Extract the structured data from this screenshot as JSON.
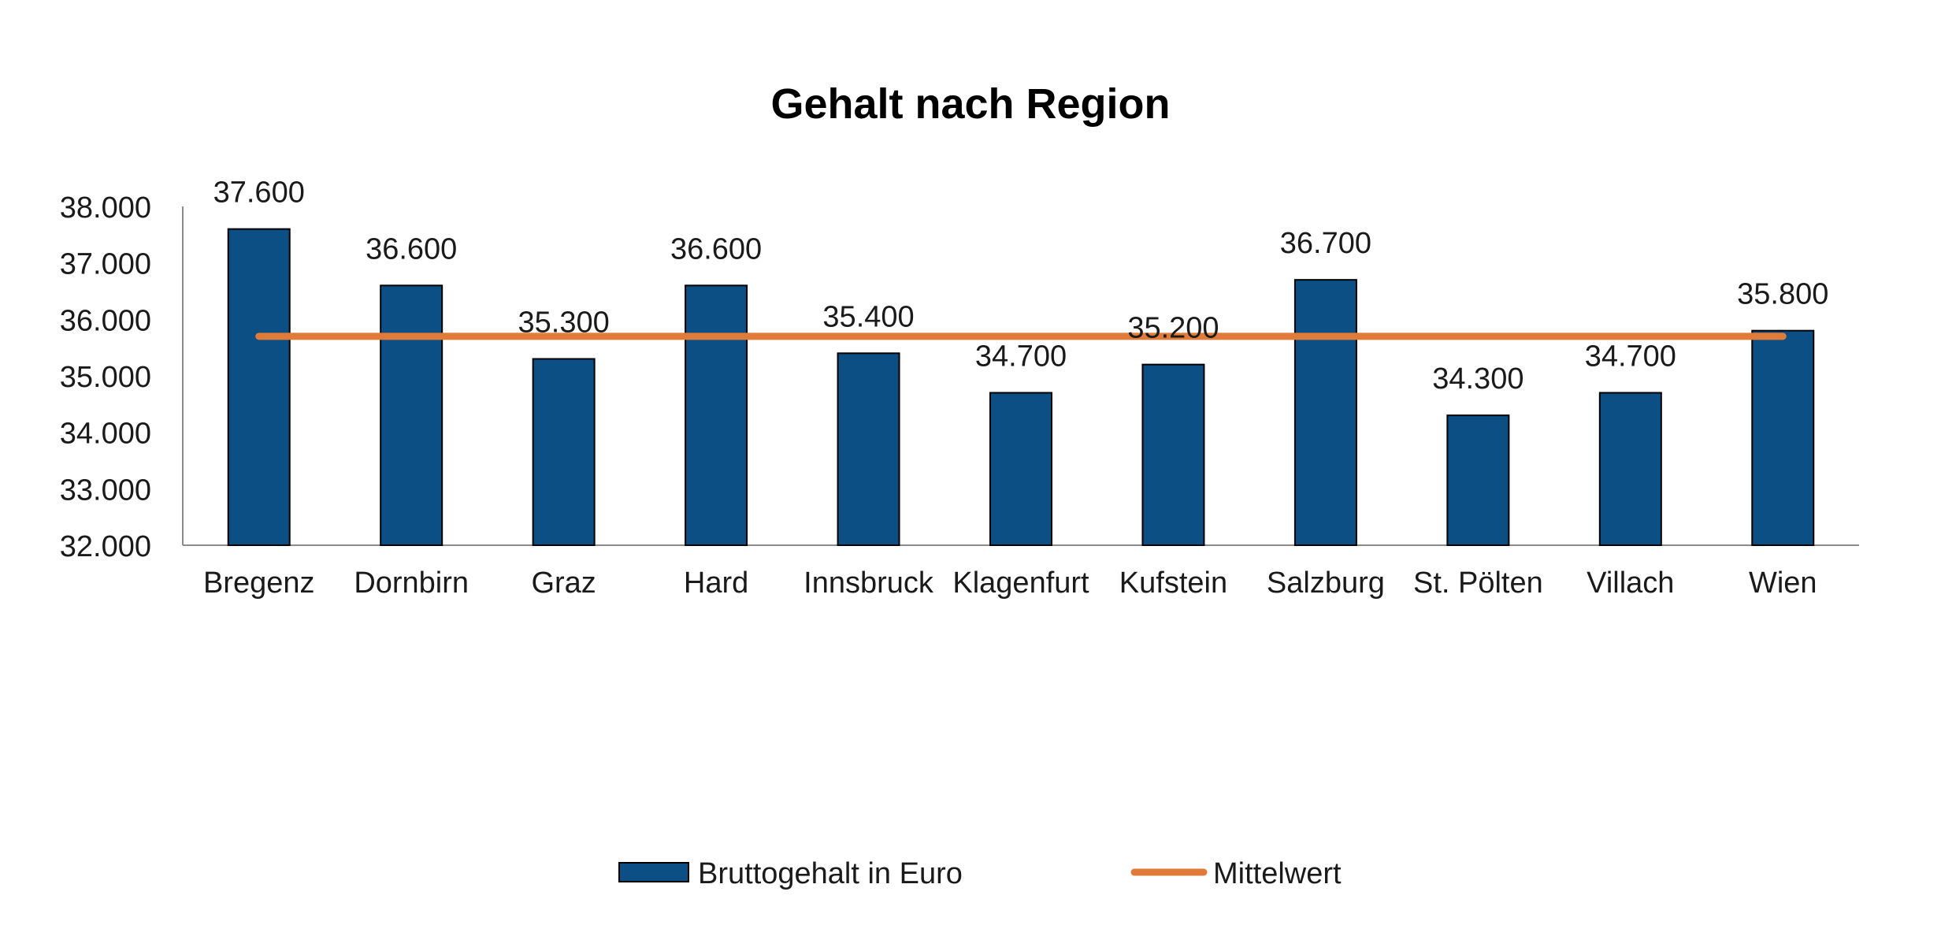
{
  "chart_data": {
    "type": "bar",
    "title": "Gehalt nach Region",
    "categories": [
      "Bregenz",
      "Dornbirn",
      "Graz",
      "Hard",
      "Innsbruck",
      "Klagenfurt",
      "Kufstein",
      "Salzburg",
      "St. Pölten",
      "Villach",
      "Wien"
    ],
    "series": [
      {
        "name": "Bruttogehalt in Euro",
        "type": "bar",
        "color": "#0b4f85",
        "values": [
          37600,
          36600,
          35300,
          36600,
          35400,
          34700,
          35200,
          36700,
          34300,
          34700,
          35800
        ],
        "labels": [
          "37.600",
          "36.600",
          "35.300",
          "36.600",
          "35.400",
          "34.700",
          "35.200",
          "36.700",
          "34.300",
          "34.700",
          "35.800"
        ]
      },
      {
        "name": "Mittelwert",
        "type": "line",
        "color": "#e07b39",
        "values": [
          35700,
          35700,
          35700,
          35700,
          35700,
          35700,
          35700,
          35700,
          35700,
          35700,
          35700
        ]
      }
    ],
    "ylim": [
      32000,
      38000
    ],
    "yticks": [
      32000,
      33000,
      34000,
      35000,
      36000,
      37000,
      38000
    ],
    "ytick_labels": [
      "32.000",
      "33.000",
      "34.000",
      "35.000",
      "36.000",
      "37.000",
      "38.000"
    ],
    "xlabel": "",
    "ylabel": "",
    "grid": false,
    "legend": "bottom"
  }
}
